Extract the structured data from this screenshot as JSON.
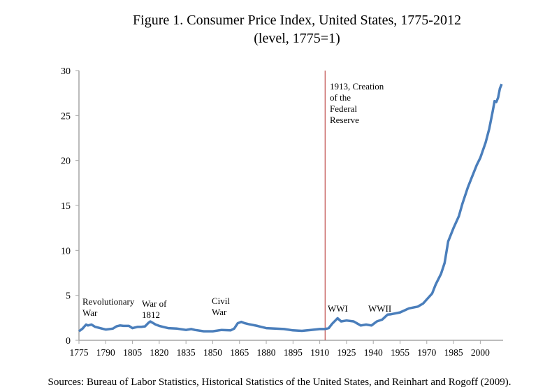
{
  "chart_data": {
    "type": "line",
    "title": "Figure 1. Consumer Price Index, United States, 1775-2012",
    "subtitle": "(level, 1775=1)",
    "xlabel": "",
    "ylabel": "",
    "xlim": [
      1775,
      2012
    ],
    "ylim": [
      0,
      30
    ],
    "yticks": [
      0,
      5,
      10,
      15,
      20,
      25,
      30
    ],
    "xticks": [
      1775,
      1790,
      1805,
      1820,
      1835,
      1850,
      1865,
      1880,
      1895,
      1910,
      1925,
      1940,
      1955,
      1970,
      1985,
      2000
    ],
    "grid": false,
    "series_color": "#4a7ebb",
    "vline": {
      "x": 1913,
      "color": "#c0504d",
      "label": "1913, Creation\nof the\nFederal\nReserve"
    },
    "annotations": [
      {
        "text": "Revolutionary\nWar"
      },
      {
        "text": "War of\n1812"
      },
      {
        "text": "Civil\nWar"
      },
      {
        "text": "WWI"
      },
      {
        "text": "WWII"
      }
    ],
    "x": [
      1775,
      1777,
      1779,
      1780,
      1782,
      1784,
      1788,
      1790,
      1794,
      1796,
      1798,
      1800,
      1803,
      1805,
      1808,
      1810,
      1812,
      1814,
      1815,
      1818,
      1820,
      1825,
      1830,
      1835,
      1838,
      1840,
      1845,
      1850,
      1855,
      1860,
      1862,
      1864,
      1866,
      1868,
      1870,
      1875,
      1880,
      1885,
      1890,
      1895,
      1900,
      1905,
      1910,
      1913,
      1915,
      1917,
      1920,
      1922,
      1925,
      1929,
      1933,
      1936,
      1939,
      1942,
      1945,
      1948,
      1950,
      1955,
      1960,
      1965,
      1968,
      1970,
      1973,
      1975,
      1978,
      1980,
      1982,
      1985,
      1988,
      1990,
      1993,
      1995,
      1998,
      2000,
      2003,
      2005,
      2007,
      2008,
      2009,
      2010,
      2011,
      2012
    ],
    "values": [
      1.0,
      1.3,
      1.75,
      1.65,
      1.75,
      1.5,
      1.3,
      1.2,
      1.3,
      1.55,
      1.65,
      1.6,
      1.6,
      1.35,
      1.5,
      1.5,
      1.55,
      1.95,
      2.1,
      1.75,
      1.6,
      1.35,
      1.3,
      1.15,
      1.25,
      1.15,
      1.0,
      1.0,
      1.15,
      1.1,
      1.3,
      1.9,
      2.05,
      1.9,
      1.8,
      1.6,
      1.35,
      1.3,
      1.25,
      1.1,
      1.05,
      1.15,
      1.25,
      1.25,
      1.35,
      1.85,
      2.45,
      2.1,
      2.2,
      2.1,
      1.65,
      1.75,
      1.65,
      2.1,
      2.3,
      2.85,
      2.9,
      3.1,
      3.55,
      3.75,
      4.1,
      4.55,
      5.2,
      6.2,
      7.4,
      8.6,
      11.0,
      12.5,
      13.8,
      15.2,
      17.0,
      18.0,
      19.5,
      20.3,
      22.0,
      23.5,
      25.5,
      26.6,
      26.5,
      27.0,
      28.0,
      28.5
    ]
  },
  "source": "Sources: Bureau of Labor Statistics, Historical Statistics of the United States, and Reinhart and Rogoff (2009)."
}
